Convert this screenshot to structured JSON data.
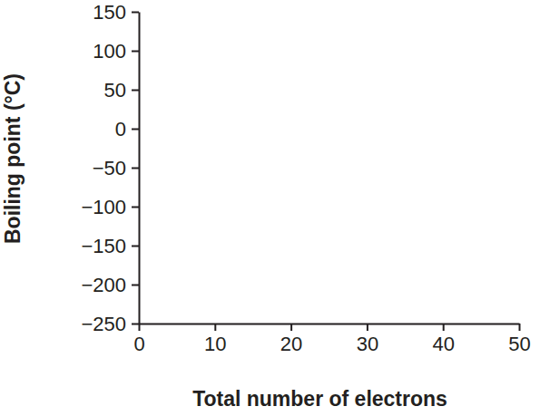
{
  "chart_data": {
    "type": "scatter",
    "x_label": "Total number of electrons",
    "y_label": "Boiling point (°C)",
    "x": [],
    "values": [],
    "xlim": [
      0,
      50
    ],
    "xticks": [
      0,
      10,
      20,
      30,
      40,
      50
    ],
    "ylim": [
      -250,
      150
    ],
    "yticks": [
      {
        "value": -250,
        "label": "−250"
      },
      {
        "value": -200,
        "label": "−200"
      },
      {
        "value": -150,
        "label": "−150"
      },
      {
        "value": -100,
        "label": "−100"
      },
      {
        "value": -50,
        "label": "−50"
      },
      0,
      50,
      100,
      150
    ],
    "grid": false
  }
}
